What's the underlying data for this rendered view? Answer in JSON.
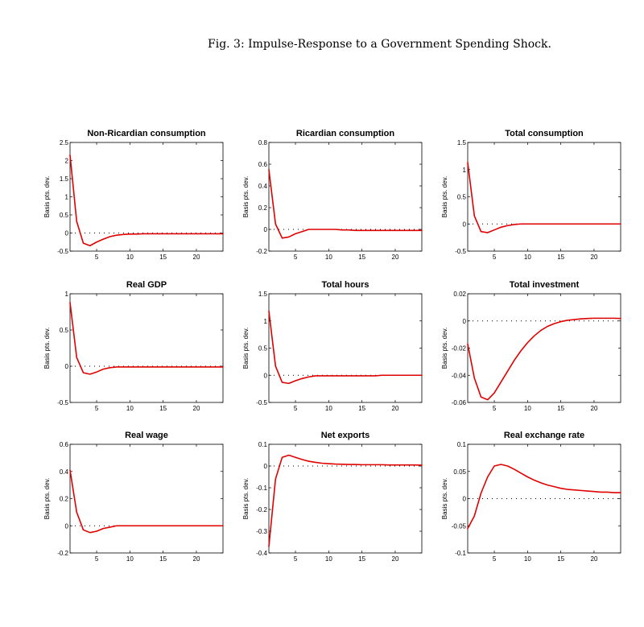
{
  "figure": {
    "title": "Fig. 3: Impulse-Response to a Government Spending Shock.",
    "line_color": "#e00000",
    "zero_line_color": "#000000"
  },
  "chart_data": [
    {
      "type": "line",
      "title": "Non-Ricardian consumption",
      "ylabel": "Basis pts. dev.",
      "xlabel": "",
      "xlim": [
        1,
        24
      ],
      "xticks": [
        5,
        10,
        15,
        20
      ],
      "ylim": [
        -0.5,
        2.5
      ],
      "yticks": [
        -0.5,
        0,
        0.5,
        1,
        1.5,
        2,
        2.5
      ],
      "ytick_labels": [
        "-0.5",
        "0",
        "0.5",
        "1",
        "1.5",
        "2",
        "2.5"
      ],
      "x": [
        1,
        2,
        3,
        4,
        5,
        6,
        7,
        8,
        9,
        10,
        11,
        12,
        13,
        14,
        15,
        16,
        17,
        18,
        19,
        20,
        21,
        22,
        23,
        24
      ],
      "values": [
        2.15,
        0.32,
        -0.28,
        -0.35,
        -0.25,
        -0.17,
        -0.1,
        -0.06,
        -0.04,
        -0.03,
        -0.03,
        -0.02,
        -0.02,
        -0.02,
        -0.02,
        -0.02,
        -0.02,
        -0.02,
        -0.02,
        -0.02,
        -0.02,
        -0.02,
        -0.02,
        -0.02
      ]
    },
    {
      "type": "line",
      "title": "Ricardian consumption",
      "ylabel": "Basis pts. dev.",
      "xlabel": "",
      "xlim": [
        1,
        24
      ],
      "xticks": [
        5,
        10,
        15,
        20
      ],
      "ylim": [
        -0.2,
        0.8
      ],
      "yticks": [
        -0.2,
        0,
        0.2,
        0.4,
        0.6,
        0.8
      ],
      "ytick_labels": [
        "-0.2",
        "0",
        "0.2",
        "0.4",
        "0.6",
        "0.8"
      ],
      "x": [
        1,
        2,
        3,
        4,
        5,
        6,
        7,
        8,
        9,
        10,
        11,
        12,
        13,
        14,
        15,
        16,
        17,
        18,
        19,
        20,
        21,
        22,
        23,
        24
      ],
      "values": [
        0.55,
        0.05,
        -0.08,
        -0.07,
        -0.04,
        -0.02,
        0.0,
        0.0,
        0.0,
        0.0,
        0.0,
        -0.005,
        -0.005,
        -0.01,
        -0.01,
        -0.01,
        -0.01,
        -0.01,
        -0.01,
        -0.01,
        -0.01,
        -0.01,
        -0.01,
        -0.01
      ]
    },
    {
      "type": "line",
      "title": "Total consumption",
      "ylabel": "Basis pts. dev.",
      "xlabel": "",
      "xlim": [
        1,
        24
      ],
      "xticks": [
        5,
        10,
        15,
        20
      ],
      "ylim": [
        -0.5,
        1.5
      ],
      "yticks": [
        -0.5,
        0,
        0.5,
        1,
        1.5
      ],
      "ytick_labels": [
        "-0.5",
        "0",
        "0.5",
        "1",
        "1.5"
      ],
      "x": [
        1,
        2,
        3,
        4,
        5,
        6,
        7,
        8,
        9,
        10,
        11,
        12,
        13,
        14,
        15,
        16,
        17,
        18,
        19,
        20,
        21,
        22,
        23,
        24
      ],
      "values": [
        1.13,
        0.15,
        -0.14,
        -0.16,
        -0.11,
        -0.06,
        -0.03,
        -0.01,
        0.0,
        0.0,
        0.0,
        0.0,
        0.0,
        0.0,
        0.0,
        0.0,
        0.0,
        0.0,
        0.0,
        0.0,
        0.0,
        0.0,
        0.0,
        0.0
      ]
    },
    {
      "type": "line",
      "title": "Real GDP",
      "ylabel": "Basis pts. dev.",
      "xlabel": "",
      "xlim": [
        1,
        24
      ],
      "xticks": [
        5,
        10,
        15,
        20
      ],
      "ylim": [
        -0.5,
        1
      ],
      "yticks": [
        -0.5,
        0,
        0.5,
        1
      ],
      "ytick_labels": [
        "-0.5",
        "0",
        "0.5",
        "1"
      ],
      "x": [
        1,
        2,
        3,
        4,
        5,
        6,
        7,
        8,
        9,
        10,
        11,
        12,
        13,
        14,
        15,
        16,
        17,
        18,
        19,
        20,
        21,
        22,
        23,
        24
      ],
      "values": [
        0.88,
        0.12,
        -0.09,
        -0.11,
        -0.08,
        -0.04,
        -0.02,
        -0.01,
        -0.01,
        -0.01,
        -0.01,
        -0.01,
        -0.01,
        -0.01,
        -0.01,
        -0.01,
        -0.01,
        -0.01,
        -0.01,
        -0.01,
        -0.01,
        -0.01,
        -0.01,
        -0.01
      ]
    },
    {
      "type": "line",
      "title": "Total hours",
      "ylabel": "Basis pts. dev.",
      "xlabel": "",
      "xlim": [
        1,
        24
      ],
      "xticks": [
        5,
        10,
        15,
        20
      ],
      "ylim": [
        -0.5,
        1.5
      ],
      "yticks": [
        -0.5,
        0,
        0.5,
        1,
        1.5
      ],
      "ytick_labels": [
        "-0.5",
        "0",
        "0.5",
        "1",
        "1.5"
      ],
      "x": [
        1,
        2,
        3,
        4,
        5,
        6,
        7,
        8,
        9,
        10,
        11,
        12,
        13,
        14,
        15,
        16,
        17,
        18,
        19,
        20,
        21,
        22,
        23,
        24
      ],
      "values": [
        1.18,
        0.17,
        -0.13,
        -0.15,
        -0.1,
        -0.06,
        -0.03,
        -0.01,
        -0.01,
        -0.01,
        -0.01,
        -0.01,
        -0.01,
        -0.01,
        -0.01,
        -0.01,
        -0.01,
        0.0,
        0.0,
        0.0,
        0.0,
        0.0,
        0.0,
        0.0
      ]
    },
    {
      "type": "line",
      "title": "Total investment",
      "ylabel": "Basis pts. dev.",
      "xlabel": "",
      "xlim": [
        1,
        24
      ],
      "xticks": [
        5,
        10,
        15,
        20
      ],
      "ylim": [
        -0.06,
        0.02
      ],
      "yticks": [
        -0.06,
        -0.04,
        -0.02,
        0,
        0.02
      ],
      "ytick_labels": [
        "-0.06",
        "-0.04",
        "-0.02",
        "0",
        "0.02"
      ],
      "x": [
        1,
        2,
        3,
        4,
        5,
        6,
        7,
        8,
        9,
        10,
        11,
        12,
        13,
        14,
        15,
        16,
        17,
        18,
        19,
        20,
        21,
        22,
        23,
        24
      ],
      "values": [
        -0.017,
        -0.042,
        -0.056,
        -0.058,
        -0.053,
        -0.045,
        -0.037,
        -0.029,
        -0.022,
        -0.016,
        -0.011,
        -0.007,
        -0.004,
        -0.002,
        -0.0005,
        0.0005,
        0.001,
        0.0015,
        0.0018,
        0.002,
        0.002,
        0.002,
        0.002,
        0.0018
      ]
    },
    {
      "type": "line",
      "title": "Real wage",
      "ylabel": "Basis pts. dev.",
      "xlabel": "",
      "xlim": [
        1,
        24
      ],
      "xticks": [
        5,
        10,
        15,
        20
      ],
      "ylim": [
        -0.2,
        0.6
      ],
      "yticks": [
        -0.2,
        0,
        0.2,
        0.4,
        0.6
      ],
      "ytick_labels": [
        "-0.2",
        "0",
        "0.2",
        "0.4",
        "0.6"
      ],
      "x": [
        1,
        2,
        3,
        4,
        5,
        6,
        7,
        8,
        9,
        10,
        11,
        12,
        13,
        14,
        15,
        16,
        17,
        18,
        19,
        20,
        21,
        22,
        23,
        24
      ],
      "values": [
        0.41,
        0.1,
        -0.03,
        -0.05,
        -0.04,
        -0.02,
        -0.01,
        0.0,
        0.0,
        0.0,
        0.0,
        0.0,
        0.0,
        0.0,
        0.0,
        0.0,
        0.0,
        0.0,
        0.0,
        0.0,
        0.0,
        0.0,
        0.0,
        0.0
      ]
    },
    {
      "type": "line",
      "title": "Net exports",
      "ylabel": "Basis pts. dev.",
      "xlabel": "",
      "xlim": [
        1,
        24
      ],
      "xticks": [
        5,
        10,
        15,
        20
      ],
      "ylim": [
        -0.4,
        0.1
      ],
      "yticks": [
        -0.4,
        -0.3,
        -0.2,
        -0.1,
        0,
        0.1
      ],
      "ytick_labels": [
        "-0.4",
        "-0.3",
        "-0.2",
        "-0.1",
        "0",
        "0.1"
      ],
      "x": [
        1,
        2,
        3,
        4,
        5,
        6,
        7,
        8,
        9,
        10,
        11,
        12,
        13,
        14,
        15,
        16,
        17,
        18,
        19,
        20,
        21,
        22,
        23,
        24
      ],
      "values": [
        -0.37,
        -0.06,
        0.04,
        0.05,
        0.04,
        0.03,
        0.022,
        0.017,
        0.013,
        0.011,
        0.009,
        0.008,
        0.007,
        0.007,
        0.006,
        0.006,
        0.006,
        0.006,
        0.005,
        0.005,
        0.005,
        0.005,
        0.005,
        0.004
      ]
    },
    {
      "type": "line",
      "title": "Real exchange rate",
      "ylabel": "Basis pts. dev.",
      "xlabel": "",
      "xlim": [
        1,
        24
      ],
      "xticks": [
        5,
        10,
        15,
        20
      ],
      "ylim": [
        -0.1,
        0.1
      ],
      "yticks": [
        -0.1,
        -0.05,
        0,
        0.05,
        0.1
      ],
      "ytick_labels": [
        "-0.1",
        "-0.05",
        "0",
        "0.05",
        "0.1"
      ],
      "x": [
        1,
        2,
        3,
        4,
        5,
        6,
        7,
        8,
        9,
        10,
        11,
        12,
        13,
        14,
        15,
        16,
        17,
        18,
        19,
        20,
        21,
        22,
        23,
        24
      ],
      "values": [
        -0.055,
        -0.032,
        0.01,
        0.04,
        0.06,
        0.063,
        0.06,
        0.054,
        0.047,
        0.04,
        0.034,
        0.029,
        0.025,
        0.022,
        0.019,
        0.017,
        0.016,
        0.015,
        0.014,
        0.013,
        0.012,
        0.012,
        0.011,
        0.011
      ]
    }
  ]
}
